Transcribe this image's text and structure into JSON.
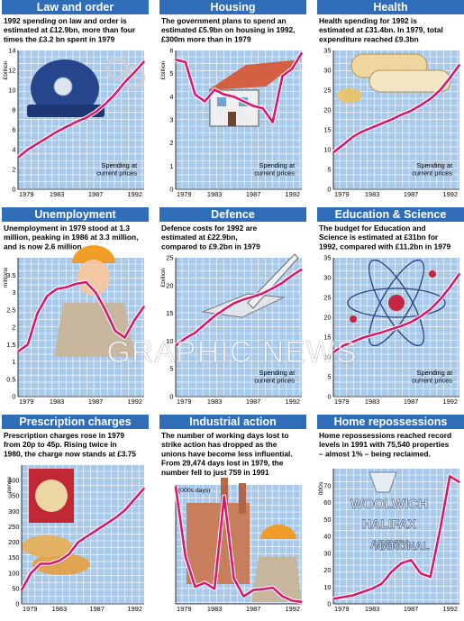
{
  "colors": {
    "header": "#2f6db8",
    "plot": "#a9c9ea",
    "grid": "#ffffff",
    "line": "#d6186e",
    "frame": "#000000"
  },
  "watermark": "GRAPHIC NEWS",
  "chart_data": [
    {
      "type": "line",
      "title": "Law and order",
      "description": [
        "1992 spending on law and order is",
        "estimated at £12.9bn, more than four",
        "times the £3.2 bn spent in 1979"
      ],
      "unit": "£billion",
      "ylim": [
        0,
        14
      ],
      "yticks": [
        0,
        2,
        4,
        6,
        8,
        10,
        12,
        14
      ],
      "xlim": [
        1979,
        1992
      ],
      "xticks": [
        "1979",
        "1983",
        "1987",
        "1992"
      ],
      "x": [
        1979,
        1980,
        1981,
        1982,
        1983,
        1984,
        1985,
        1986,
        1987,
        1988,
        1989,
        1990,
        1991,
        1992
      ],
      "values": [
        3.2,
        4.0,
        4.6,
        5.2,
        5.8,
        6.3,
        6.8,
        7.2,
        7.8,
        8.6,
        9.6,
        10.8,
        11.8,
        12.9
      ],
      "note": [
        "Spending at",
        "current prices"
      ],
      "illustration": "police-helmet-handcuffs"
    },
    {
      "type": "line",
      "title": "Housing",
      "description": [
        "The government plans to spend an",
        "estimated £5.9bn on housing in 1992,",
        "£300m more than in 1979"
      ],
      "unit": "£billion",
      "ylim": [
        0,
        6
      ],
      "yticks": [
        0,
        1,
        2,
        3,
        4,
        5,
        6
      ],
      "xlim": [
        1979,
        1992
      ],
      "xticks": [
        "1979",
        "1983",
        "1987",
        "1992"
      ],
      "x": [
        1979,
        1980,
        1981,
        1982,
        1983,
        1984,
        1985,
        1986,
        1987,
        1988,
        1989,
        1990,
        1991,
        1992
      ],
      "values": [
        5.6,
        5.5,
        4.1,
        3.8,
        4.3,
        4.1,
        4.0,
        3.8,
        3.6,
        3.5,
        2.9,
        4.9,
        5.2,
        5.9
      ],
      "note": [
        "Spending at",
        "current prices"
      ],
      "illustration": "house"
    },
    {
      "type": "line",
      "title": "Health",
      "description": [
        "Health spending for 1992 is",
        "estimated at £31.4bn. In 1979, total",
        "expenditure reached £9.3bn"
      ],
      "unit": "",
      "ylim": [
        0,
        35
      ],
      "yticks": [
        0,
        5,
        10,
        15,
        20,
        25,
        30,
        35
      ],
      "xlim": [
        1979,
        1992
      ],
      "xticks": [
        "1979",
        "1983",
        "1987",
        "1992"
      ],
      "x": [
        1979,
        1980,
        1981,
        1982,
        1983,
        1984,
        1985,
        1986,
        1987,
        1988,
        1989,
        1990,
        1991,
        1992
      ],
      "values": [
        9.3,
        11.2,
        13.2,
        14.6,
        15.6,
        16.6,
        17.6,
        18.8,
        19.8,
        21.2,
        22.8,
        25.0,
        28.0,
        31.4
      ],
      "note": [
        "Spending at",
        "current prices"
      ],
      "illustration": "pills"
    },
    {
      "type": "line",
      "title": "Unemployment",
      "description": [
        "Unemployment in 1979 stood at 1.3",
        "million, peaking in 1986 at 3.3 million,",
        "and is now 2.6 million"
      ],
      "unit": "millions",
      "ylim": [
        0,
        4
      ],
      "yticks": [
        0,
        0.5,
        1,
        1.5,
        2,
        2.5,
        3,
        3.5
      ],
      "xlim": [
        1979,
        1992
      ],
      "xticks": [
        "1979",
        "1983",
        "1987",
        "1992"
      ],
      "x": [
        1979,
        1980,
        1981,
        1982,
        1983,
        1984,
        1985,
        1986,
        1987,
        1988,
        1989,
        1990,
        1991,
        1992
      ],
      "values": [
        1.3,
        1.5,
        2.4,
        2.9,
        3.1,
        3.15,
        3.25,
        3.3,
        3.0,
        2.5,
        1.9,
        1.7,
        2.2,
        2.6
      ],
      "note": [],
      "illustration": "worker"
    },
    {
      "type": "line",
      "title": "Defence",
      "description": [
        "Defence costs for 1992 are",
        "estimated at £22.9bn,",
        "compared to £9.2bn in 1979"
      ],
      "unit": "£billion",
      "ylim": [
        0,
        25
      ],
      "yticks": [
        0,
        5,
        10,
        15,
        20,
        25
      ],
      "xlim": [
        1979,
        1992
      ],
      "xticks": [
        "1979",
        "1983",
        "1987",
        "1992"
      ],
      "x": [
        1979,
        1980,
        1981,
        1982,
        1983,
        1984,
        1985,
        1986,
        1987,
        1988,
        1989,
        1990,
        1991,
        1992
      ],
      "values": [
        9.2,
        10.5,
        11.5,
        13.0,
        14.5,
        15.7,
        16.8,
        17.5,
        18.0,
        18.6,
        19.5,
        20.5,
        21.8,
        22.9
      ],
      "note": [
        "Spending at",
        "current prices"
      ],
      "illustration": "jet-missile"
    },
    {
      "type": "line",
      "title": "Education & Science",
      "description": [
        "The budget for Education and",
        "Science is estimated at £31bn for",
        "1992, compared with £11.2bn in 1979"
      ],
      "unit": "",
      "ylim": [
        0,
        35
      ],
      "yticks": [
        0,
        5,
        10,
        15,
        20,
        25,
        30,
        35
      ],
      "xlim": [
        1979,
        1992
      ],
      "xticks": [
        "1979",
        "1983",
        "1987",
        "1992"
      ],
      "x": [
        1979,
        1980,
        1981,
        1982,
        1983,
        1984,
        1985,
        1986,
        1987,
        1988,
        1989,
        1990,
        1991,
        1992
      ],
      "values": [
        11.2,
        12.8,
        13.8,
        14.8,
        15.5,
        16.2,
        17.0,
        17.8,
        18.8,
        20.2,
        22.0,
        24.5,
        27.5,
        31.0
      ],
      "note": [
        "Spending at",
        "current prices"
      ],
      "illustration": "atom"
    },
    {
      "type": "line",
      "title": "Prescription charges",
      "description": [
        "Prescription charges rose in 1979",
        "from 20p to 45p. Rising twice in",
        "1980, the charge now stands at £3.75"
      ],
      "unit": "pence",
      "ylim": [
        0,
        450
      ],
      "yticks": [
        0,
        50,
        100,
        150,
        200,
        250,
        300,
        350,
        400
      ],
      "xlim": [
        1979,
        1992
      ],
      "xticks": [
        "1979",
        "1983",
        "1987",
        "1992"
      ],
      "x": [
        1979,
        1980,
        1981,
        1982,
        1983,
        1984,
        1985,
        1986,
        1987,
        1988,
        1989,
        1990,
        1991,
        1992
      ],
      "values": [
        45,
        100,
        130,
        130,
        140,
        160,
        200,
        220,
        240,
        260,
        280,
        305,
        340,
        375
      ],
      "note": [],
      "illustration": "pound-coin"
    },
    {
      "type": "line",
      "title": "Industrial action",
      "description": [
        "The number of working days lost to",
        "strike action has dropped as the",
        "unions have become less influential.",
        "From 29,474 days lost in 1979, the",
        "number fell to just 759 in 1991"
      ],
      "unit": "(000s days)",
      "ylim": [
        0,
        30
      ],
      "yticks": [],
      "xlim": [
        1979,
        1992
      ],
      "xticks": [
        "1979",
        "1983",
        "1987",
        "1992"
      ],
      "x": [
        1979,
        1980,
        1981,
        1982,
        1983,
        1984,
        1985,
        1986,
        1987,
        1988,
        1989,
        1990,
        1991,
        1992
      ],
      "values": [
        29.5,
        12.0,
        4.3,
        5.3,
        3.8,
        27.1,
        6.4,
        1.9,
        3.5,
        3.7,
        4.1,
        1.9,
        0.8,
        0.5
      ],
      "note": [],
      "illustration": "factory-worker"
    },
    {
      "type": "line",
      "title": "Home repossessions",
      "description": [
        "Home repossessions reached record",
        "levels in 1991 with 75,540 properties",
        "– almost 1% – being reclaimed."
      ],
      "unit": "000s",
      "ylim": [
        0,
        80
      ],
      "yticks": [
        0,
        10,
        20,
        30,
        40,
        50,
        60,
        70
      ],
      "xlim": [
        1979,
        1992
      ],
      "xticks": [
        "1979",
        "1983",
        "1987",
        "1992"
      ],
      "x": [
        1979,
        1980,
        1981,
        1982,
        1983,
        1984,
        1985,
        1986,
        1987,
        1988,
        1989,
        1990,
        1991,
        1992
      ],
      "values": [
        3,
        4,
        5,
        7,
        9,
        12,
        19,
        24,
        26,
        18,
        16,
        44,
        75.5,
        72
      ],
      "note": [],
      "illustration": "bank-logos",
      "logos": [
        "WOOLWICH",
        "HALIFAX",
        "ABBEY",
        "NATIONAL"
      ]
    }
  ]
}
